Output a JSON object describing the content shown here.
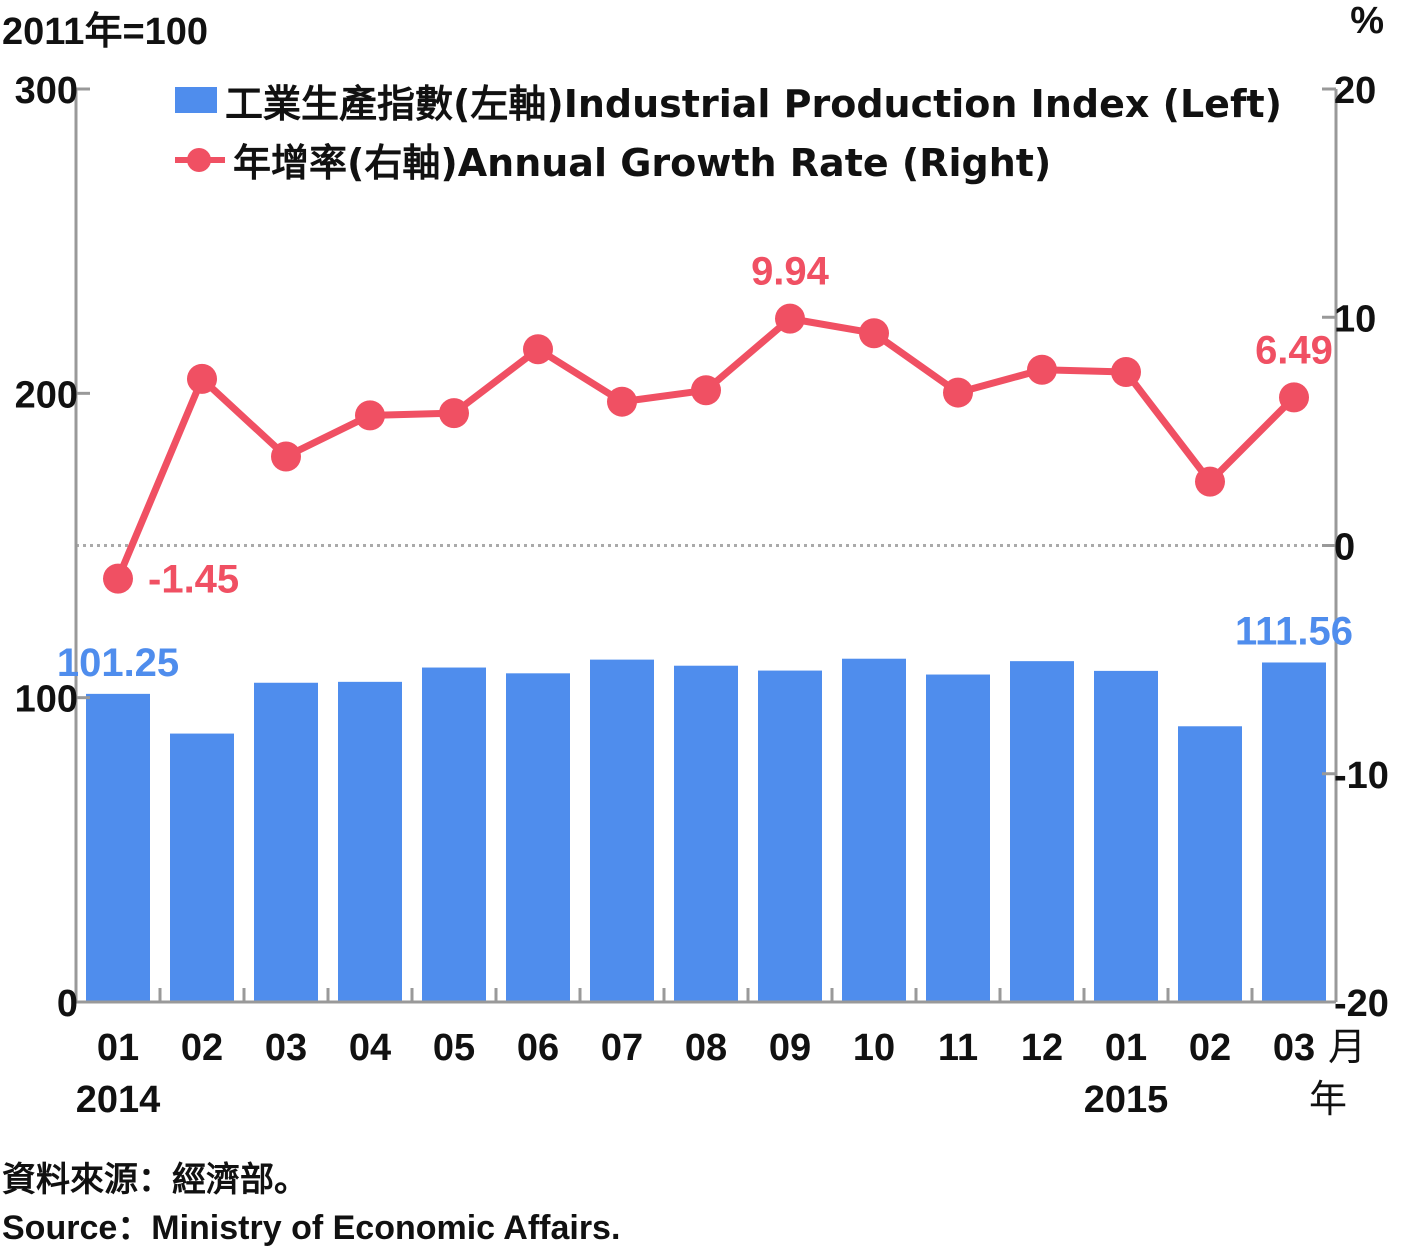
{
  "units": {
    "left": "2011年=100",
    "right": "%"
  },
  "legend": {
    "bar_label": "工業生產指數(左軸)Industrial Production Index (Left)",
    "line_label": "年增率(右軸)Annual Growth Rate (Right)"
  },
  "source": {
    "zh": "資料來源：經濟部。",
    "en": "Source：Ministry of Economic Affairs."
  },
  "colors": {
    "bar": "#4f8ded",
    "line": "#f05063",
    "axis": "#999999",
    "zero_line": "#aaaaaa"
  },
  "chart_data": {
    "type": "bar",
    "categories": [
      "01",
      "02",
      "03",
      "04",
      "05",
      "06",
      "07",
      "08",
      "09",
      "10",
      "11",
      "12",
      "01",
      "02",
      "03"
    ],
    "year_labels": [
      {
        "index": 0,
        "label": "2014"
      },
      {
        "index": 12,
        "label": "2015"
      }
    ],
    "x_unit_labels": {
      "month": "月",
      "year": "年"
    },
    "series": [
      {
        "name": "工業生產指數(左軸)Industrial Production Index (Left)",
        "type": "bar",
        "axis": "left",
        "values": [
          101.25,
          88.2,
          104.9,
          105.2,
          109.9,
          108.0,
          112.5,
          110.5,
          108.9,
          112.8,
          107.6,
          112.0,
          108.8,
          90.6,
          111.56
        ]
      },
      {
        "name": "年增率(右軸)Annual Growth Rate (Right)",
        "type": "line",
        "axis": "right",
        "values": [
          -1.45,
          7.3,
          3.9,
          5.7,
          5.8,
          8.6,
          6.3,
          6.8,
          9.94,
          9.3,
          6.7,
          7.7,
          7.6,
          2.8,
          6.49
        ]
      }
    ],
    "data_labels": {
      "bar": [
        {
          "index": 0,
          "text": "101.25"
        },
        {
          "index": 14,
          "text": "111.56"
        }
      ],
      "line": [
        {
          "index": 0,
          "text": "-1.45"
        },
        {
          "index": 8,
          "text": "9.94"
        },
        {
          "index": 14,
          "text": "6.49"
        }
      ]
    },
    "left_axis": {
      "min": 0,
      "max": 300,
      "ticks": [
        0,
        100,
        200,
        300
      ]
    },
    "right_axis": {
      "min": -20,
      "max": 20,
      "ticks": [
        -20,
        -10,
        0,
        10,
        20
      ]
    },
    "grid": false,
    "zero_reference_line": true,
    "legend_position": "top-left"
  }
}
